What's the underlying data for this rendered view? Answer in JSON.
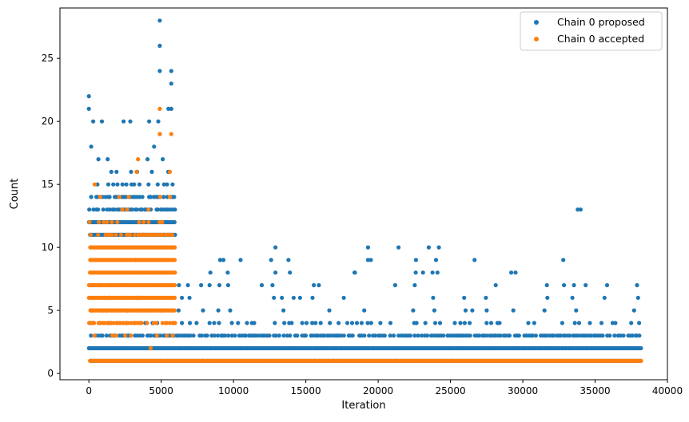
{
  "chart_data": {
    "type": "scatter",
    "title": "",
    "xlabel": "Iteration",
    "ylabel": "Count",
    "xlim": [
      -2000,
      40000
    ],
    "ylim": [
      -0.5,
      29
    ],
    "x_ticks": [
      0,
      5000,
      10000,
      15000,
      20000,
      25000,
      30000,
      35000,
      40000
    ],
    "y_ticks": [
      0,
      5,
      10,
      15,
      20,
      25
    ],
    "x_tick_labels": [
      "0",
      "5000",
      "10000",
      "15000",
      "20000",
      "25000",
      "30000",
      "35000",
      "40000"
    ],
    "y_tick_labels": [
      "0",
      "5",
      "10",
      "15",
      "20",
      "25"
    ],
    "grid": false,
    "legend_position": "top-right",
    "legend": [
      "Chain 0 proposed",
      "Chain 0 accepted"
    ],
    "series": [
      {
        "name": "Chain 0 proposed",
        "color": "#1f77b4",
        "bands": [
          {
            "y": 1,
            "x_range": [
              0,
              38200
            ],
            "density": "continuous"
          },
          {
            "y": 2,
            "x_range": [
              0,
              38200
            ],
            "density": "continuous"
          },
          {
            "y": 3,
            "x_range": [
              0,
              38200
            ],
            "density": "dense"
          },
          {
            "y": 4,
            "x_range": [
              0,
              38200
            ],
            "density": "medium"
          },
          {
            "y": 5,
            "x_range": [
              0,
              38200
            ],
            "density": "sparse"
          },
          {
            "y": 6,
            "x_range": [
              0,
              38200
            ],
            "density": "sparse"
          },
          {
            "y": 7,
            "x_range": [
              0,
              38200
            ],
            "density": "sparse"
          },
          {
            "y": 8,
            "x_range": [
              0,
              29500
            ],
            "density": "rare"
          },
          {
            "y": 9,
            "x_range": [
              0,
              32800
            ],
            "density": "rare"
          },
          {
            "y": 10,
            "x_range": [
              0,
              24300
            ],
            "density": "rare"
          },
          {
            "y": 11,
            "x_range": [
              0,
              6000
            ],
            "density": "continuous"
          },
          {
            "y": 12,
            "x_range": [
              0,
              6000
            ],
            "density": "continuous"
          },
          {
            "y": 13,
            "x_range": [
              0,
              6000
            ],
            "density": "dense"
          },
          {
            "y": 14,
            "x_range": [
              0,
              6000
            ],
            "density": "dense"
          },
          {
            "y": 15,
            "x_range": [
              0,
              6000
            ],
            "density": "medium"
          },
          {
            "y": 16,
            "x_range": [
              0,
              6000
            ],
            "density": "sparse"
          },
          {
            "y": 17,
            "x_range": [
              0,
              6000
            ],
            "density": "sparse"
          },
          {
            "y": 18,
            "x_range": [
              0,
              5800
            ],
            "density": "rare"
          },
          {
            "y": 19,
            "x_range": [
              0,
              5600
            ],
            "density": "rare"
          },
          {
            "y": 20,
            "x_range": [
              0,
              5500
            ],
            "density": "rare"
          }
        ],
        "points": [
          [
            0,
            22
          ],
          [
            0,
            21
          ],
          [
            300,
            20
          ],
          [
            900,
            20
          ],
          [
            2400,
            20
          ],
          [
            4800,
            20
          ],
          [
            5700,
            21
          ],
          [
            5500,
            21
          ],
          [
            5700,
            23
          ],
          [
            5700,
            24
          ],
          [
            4900,
            24
          ],
          [
            4900,
            26
          ],
          [
            4900,
            28
          ],
          [
            9300,
            9
          ],
          [
            12600,
            9
          ],
          [
            12900,
            10
          ],
          [
            13800,
            9
          ],
          [
            19300,
            10
          ],
          [
            19300,
            9
          ],
          [
            19500,
            9
          ],
          [
            23500,
            10
          ],
          [
            24200,
            10
          ],
          [
            24000,
            9
          ],
          [
            29200,
            8
          ],
          [
            29500,
            8
          ],
          [
            32800,
            9
          ],
          [
            33800,
            13
          ],
          [
            34000,
            13
          ],
          [
            37900,
            7
          ],
          [
            15900,
            7
          ],
          [
            13900,
            8
          ],
          [
            18400,
            8
          ],
          [
            9600,
            8
          ],
          [
            8400,
            8
          ],
          [
            12900,
            8
          ],
          [
            22600,
            8
          ],
          [
            23100,
            8
          ],
          [
            24100,
            8
          ]
        ]
      },
      {
        "name": "Chain 0 accepted",
        "color": "#ff7f0e",
        "bands": [
          {
            "y": 1,
            "x_range": [
              0,
              38200
            ],
            "density": "continuous"
          },
          {
            "y": 2,
            "x_range": [
              0,
              6000
            ],
            "density": "sparse"
          },
          {
            "y": 3,
            "x_range": [
              0,
              6000
            ],
            "density": "medium"
          },
          {
            "y": 4,
            "x_range": [
              0,
              6000
            ],
            "density": "dense"
          },
          {
            "y": 5,
            "x_range": [
              0,
              6000
            ],
            "density": "continuous"
          },
          {
            "y": 6,
            "x_range": [
              0,
              6000
            ],
            "density": "continuous"
          },
          {
            "y": 7,
            "x_range": [
              0,
              6000
            ],
            "density": "continuous"
          },
          {
            "y": 8,
            "x_range": [
              0,
              6000
            ],
            "density": "continuous"
          },
          {
            "y": 9,
            "x_range": [
              0,
              6000
            ],
            "density": "continuous"
          },
          {
            "y": 10,
            "x_range": [
              0,
              6000
            ],
            "density": "continuous"
          },
          {
            "y": 11,
            "x_range": [
              0,
              6000
            ],
            "density": "dense"
          },
          {
            "y": 12,
            "x_range": [
              0,
              6000
            ],
            "density": "medium"
          },
          {
            "y": 13,
            "x_range": [
              0,
              6000
            ],
            "density": "sparse"
          },
          {
            "y": 14,
            "x_range": [
              0,
              6000
            ],
            "density": "sparse"
          },
          {
            "y": 15,
            "x_range": [
              0,
              5500
            ],
            "density": "rare"
          }
        ],
        "points": [
          [
            4900,
            21
          ],
          [
            4900,
            19
          ],
          [
            5700,
            19
          ],
          [
            3400,
            17
          ],
          [
            3300,
            16
          ],
          [
            5600,
            16
          ],
          [
            400,
            15
          ],
          [
            2100,
            14
          ]
        ]
      }
    ]
  }
}
